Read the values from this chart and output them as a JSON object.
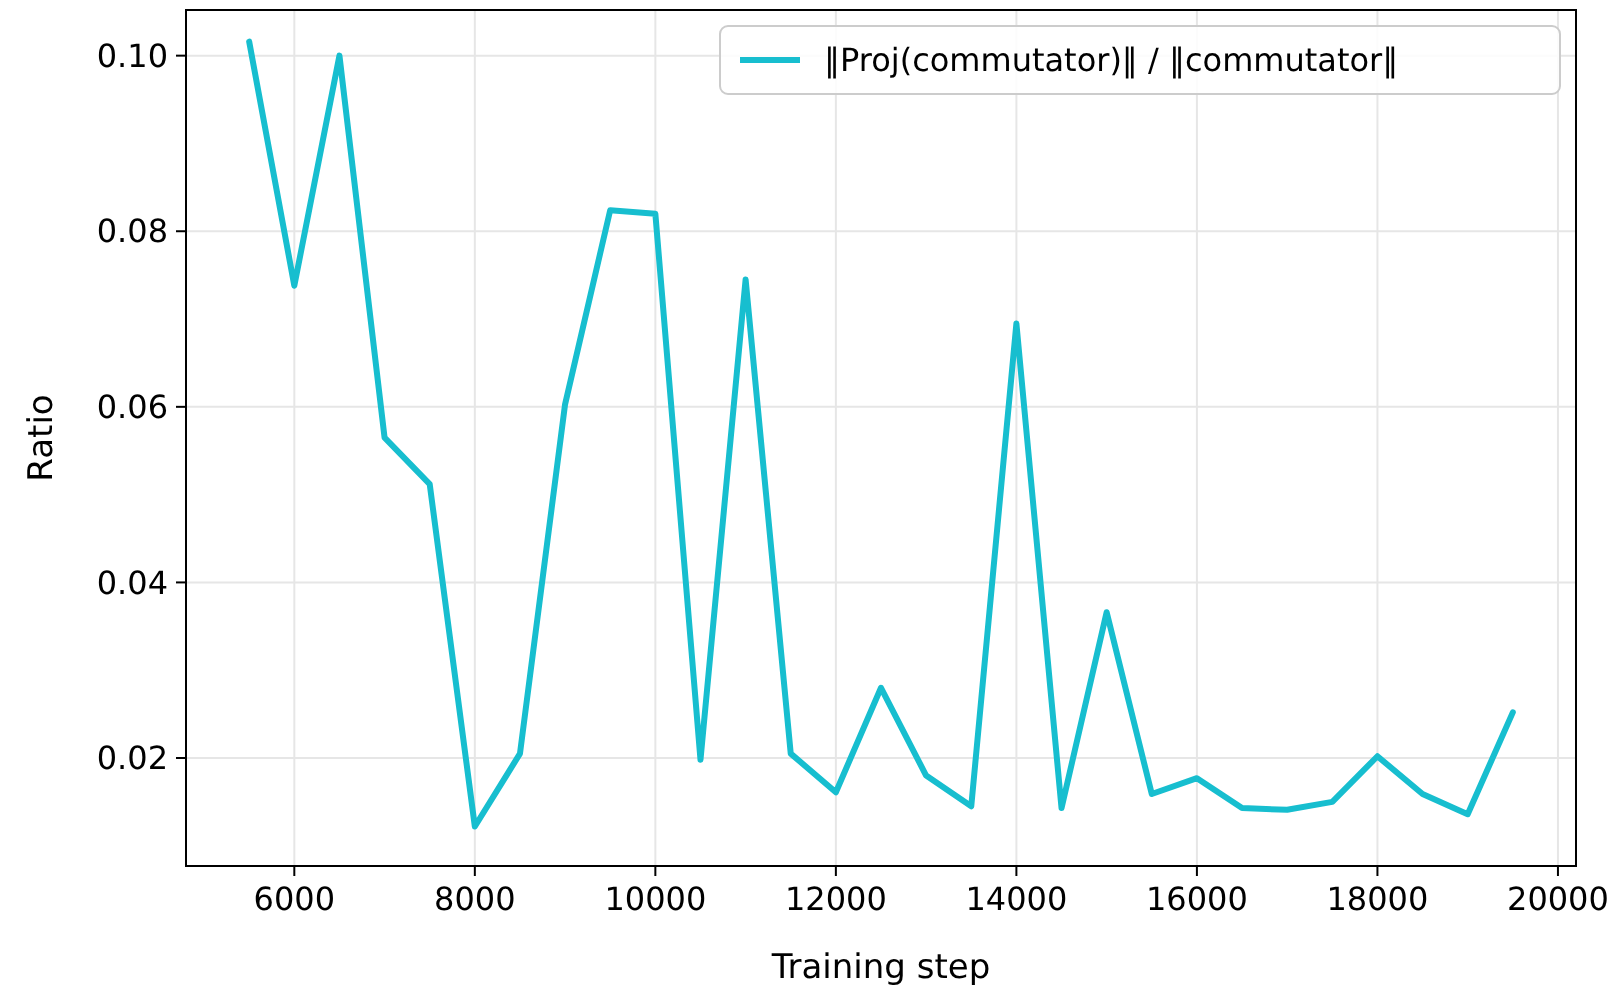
{
  "chart_data": {
    "type": "line",
    "xlabel": "Training step",
    "ylabel": "Ratio",
    "x": [
      5500,
      6000,
      6500,
      7000,
      7500,
      8000,
      8500,
      9000,
      9500,
      10000,
      10500,
      11000,
      11500,
      12000,
      12500,
      13000,
      13500,
      14000,
      14500,
      15000,
      15500,
      16000,
      16500,
      17000,
      17500,
      18000,
      18500,
      19000,
      19500
    ],
    "series": [
      {
        "name": "‖Proj(commutator)‖ / ‖commutator‖",
        "color": "#17becf",
        "values": [
          0.1016,
          0.0738,
          0.1,
          0.0565,
          0.0512,
          0.0122,
          0.0205,
          0.0603,
          0.0824,
          0.082,
          0.0198,
          0.0745,
          0.0205,
          0.0161,
          0.028,
          0.018,
          0.0145,
          0.0695,
          0.0143,
          0.0366,
          0.0159,
          0.0177,
          0.0143,
          0.0141,
          0.015,
          0.0202,
          0.0159,
          0.0136,
          0.0252
        ]
      }
    ],
    "xlim": [
      4800,
      20200
    ],
    "xticks": [
      6000,
      8000,
      10000,
      12000,
      14000,
      16000,
      18000,
      20000
    ],
    "ylim": [
      0.0077,
      0.1052
    ],
    "yticks": [
      {
        "value": 0.02,
        "label": "0.02"
      },
      {
        "value": 0.04,
        "label": "0.04"
      },
      {
        "value": 0.06,
        "label": "0.06"
      },
      {
        "value": 0.08,
        "label": "0.08"
      },
      {
        "value": 0.1,
        "label": "0.10"
      }
    ],
    "grid": true,
    "legend": "top right",
    "line_style": "solid",
    "marker": "none"
  }
}
